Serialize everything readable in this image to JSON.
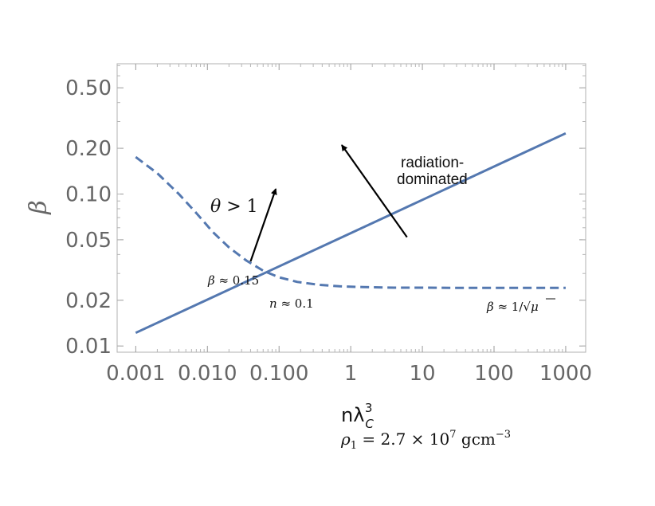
{
  "chart_data": {
    "type": "line",
    "xscale": "log",
    "yscale": "log",
    "xlim": [
      0.00055,
      1900
    ],
    "ylim": [
      0.0091,
      0.72
    ],
    "xticks": [
      {
        "value": 0.001,
        "label": "0.001"
      },
      {
        "value": 0.01,
        "label": "0.010"
      },
      {
        "value": 0.1,
        "label": "0.100"
      },
      {
        "value": 1,
        "label": "1"
      },
      {
        "value": 10,
        "label": "10"
      },
      {
        "value": 100,
        "label": "100"
      },
      {
        "value": 1000,
        "label": "1000"
      }
    ],
    "yticks": [
      {
        "value": 0.01,
        "label": "0.01"
      },
      {
        "value": 0.02,
        "label": "0.02"
      },
      {
        "value": 0.05,
        "label": "0.05"
      },
      {
        "value": 0.1,
        "label": "0.10"
      },
      {
        "value": 0.2,
        "label": "0.20"
      },
      {
        "value": 0.5,
        "label": "0.50"
      }
    ],
    "ylabel": "β",
    "xlabel": "nλ",
    "xlabel_sub": "C",
    "xlabel_sup": "3",
    "rho_label": {
      "rho": "ρ",
      "sub": "1",
      "eq": " = 2.7 × 10",
      "exp7": "7",
      "unit": " gcm",
      "expneg": "−3"
    },
    "series": [
      {
        "name": "radiation-dominated boundary",
        "style": "solid",
        "color": "#5478b0",
        "x": [
          0.001,
          0.01,
          0.1,
          1,
          10,
          100,
          1000
        ],
        "y": [
          0.0122,
          0.0202,
          0.0334,
          0.0553,
          0.0916,
          0.1516,
          0.251
        ]
      },
      {
        "name": "theta > 1 boundary",
        "style": "dashed",
        "color": "#5478b0",
        "x": [
          0.001,
          0.002,
          0.004,
          0.007,
          0.012,
          0.02,
          0.035,
          0.06,
          0.1,
          0.18,
          0.35,
          0.7,
          1.5,
          4,
          10,
          30,
          100,
          300,
          1000
        ],
        "y": [
          0.175,
          0.137,
          0.1,
          0.075,
          0.056,
          0.0445,
          0.0365,
          0.0313,
          0.0283,
          0.0264,
          0.0253,
          0.0247,
          0.0244,
          0.0242,
          0.0242,
          0.0241,
          0.0241,
          0.0241,
          0.0241
        ]
      }
    ],
    "arrows": [
      {
        "name": "theta-arrow",
        "from": [
          0.04,
          0.036
        ],
        "to": [
          0.09,
          0.108
        ]
      },
      {
        "name": "radiation-arrow",
        "from": [
          6.1,
          0.052
        ],
        "to": [
          0.75,
          0.21
        ]
      }
    ],
    "annotations": {
      "theta": {
        "lhs": "θ",
        "rhs": " > 1"
      },
      "radiation": [
        "radiation-",
        "dominated"
      ],
      "beta_low": {
        "lhs": "β",
        "rhs": " ≈ 0.15"
      },
      "n_cross": {
        "lhs": "n",
        "rhs": " ≈ 0.1"
      },
      "beta_high": {
        "lhs": "β",
        "mid": " ≈ 1/√",
        "mu": "μ"
      }
    }
  }
}
